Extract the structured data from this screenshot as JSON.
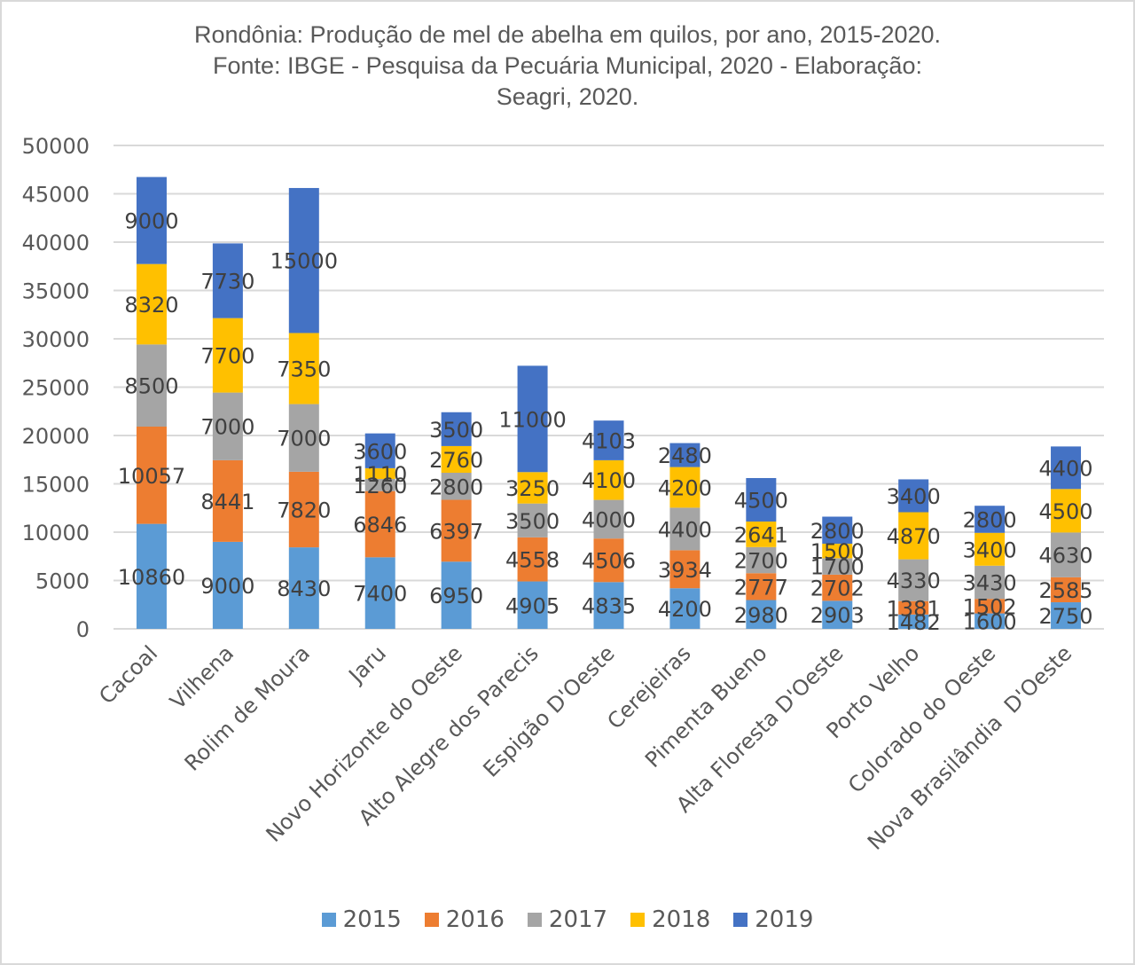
{
  "chart_data": {
    "type": "bar",
    "stacked": true,
    "title_lines": [
      "Rondônia: Produção de mel de abelha em quilos, por ano, 2015-2020.",
      "Fonte: IBGE - Pesquisa da Pecuária Municipal, 2020 - Elaboração:",
      "Seagri, 2020."
    ],
    "xlabel": "",
    "ylabel": "",
    "ylim": [
      0,
      50000
    ],
    "yticks": [
      "0",
      "5000",
      "10000",
      "15000",
      "20000",
      "25000",
      "30000",
      "35000",
      "40000",
      "45000",
      "50000"
    ],
    "grid": true,
    "legend_position": "bottom",
    "categories": [
      "Cacoal",
      "Vilhena",
      "Rolim de Moura",
      "Jaru",
      "Novo Horizonte do Oeste",
      "Alto Alegre dos Parecis",
      "Espigão D'Oeste",
      "Cerejeiras",
      "Pimenta Bueno",
      "Alta Floresta D'Oeste",
      "Porto Velho",
      "Colorado do Oeste",
      "Nova Brasilândia  D'Oeste"
    ],
    "series": [
      {
        "name": "2015",
        "color": "#5b9bd5",
        "values": [
          10860,
          9000,
          8430,
          7400,
          6950,
          4905,
          4835,
          4200,
          2980,
          2903,
          1482,
          1600,
          2750
        ]
      },
      {
        "name": "2016",
        "color": "#ed7d31",
        "values": [
          10057,
          8441,
          7820,
          6846,
          6397,
          4558,
          4506,
          3934,
          2777,
          2702,
          1381,
          1502,
          2585
        ]
      },
      {
        "name": "2017",
        "color": "#a5a5a5",
        "values": [
          8500,
          7000,
          7000,
          1260,
          2800,
          3500,
          4000,
          4400,
          2700,
          1700,
          4330,
          3430,
          4630
        ]
      },
      {
        "name": "2018",
        "color": "#ffc000",
        "values": [
          8320,
          7700,
          7350,
          1110,
          2760,
          3250,
          4100,
          4200,
          2641,
          1500,
          4870,
          3400,
          4500
        ]
      },
      {
        "name": "2019",
        "color": "#4472c4",
        "values": [
          9000,
          7730,
          15000,
          3600,
          3500,
          11000,
          4103,
          2480,
          4500,
          2800,
          3400,
          2800,
          4400
        ]
      }
    ]
  }
}
